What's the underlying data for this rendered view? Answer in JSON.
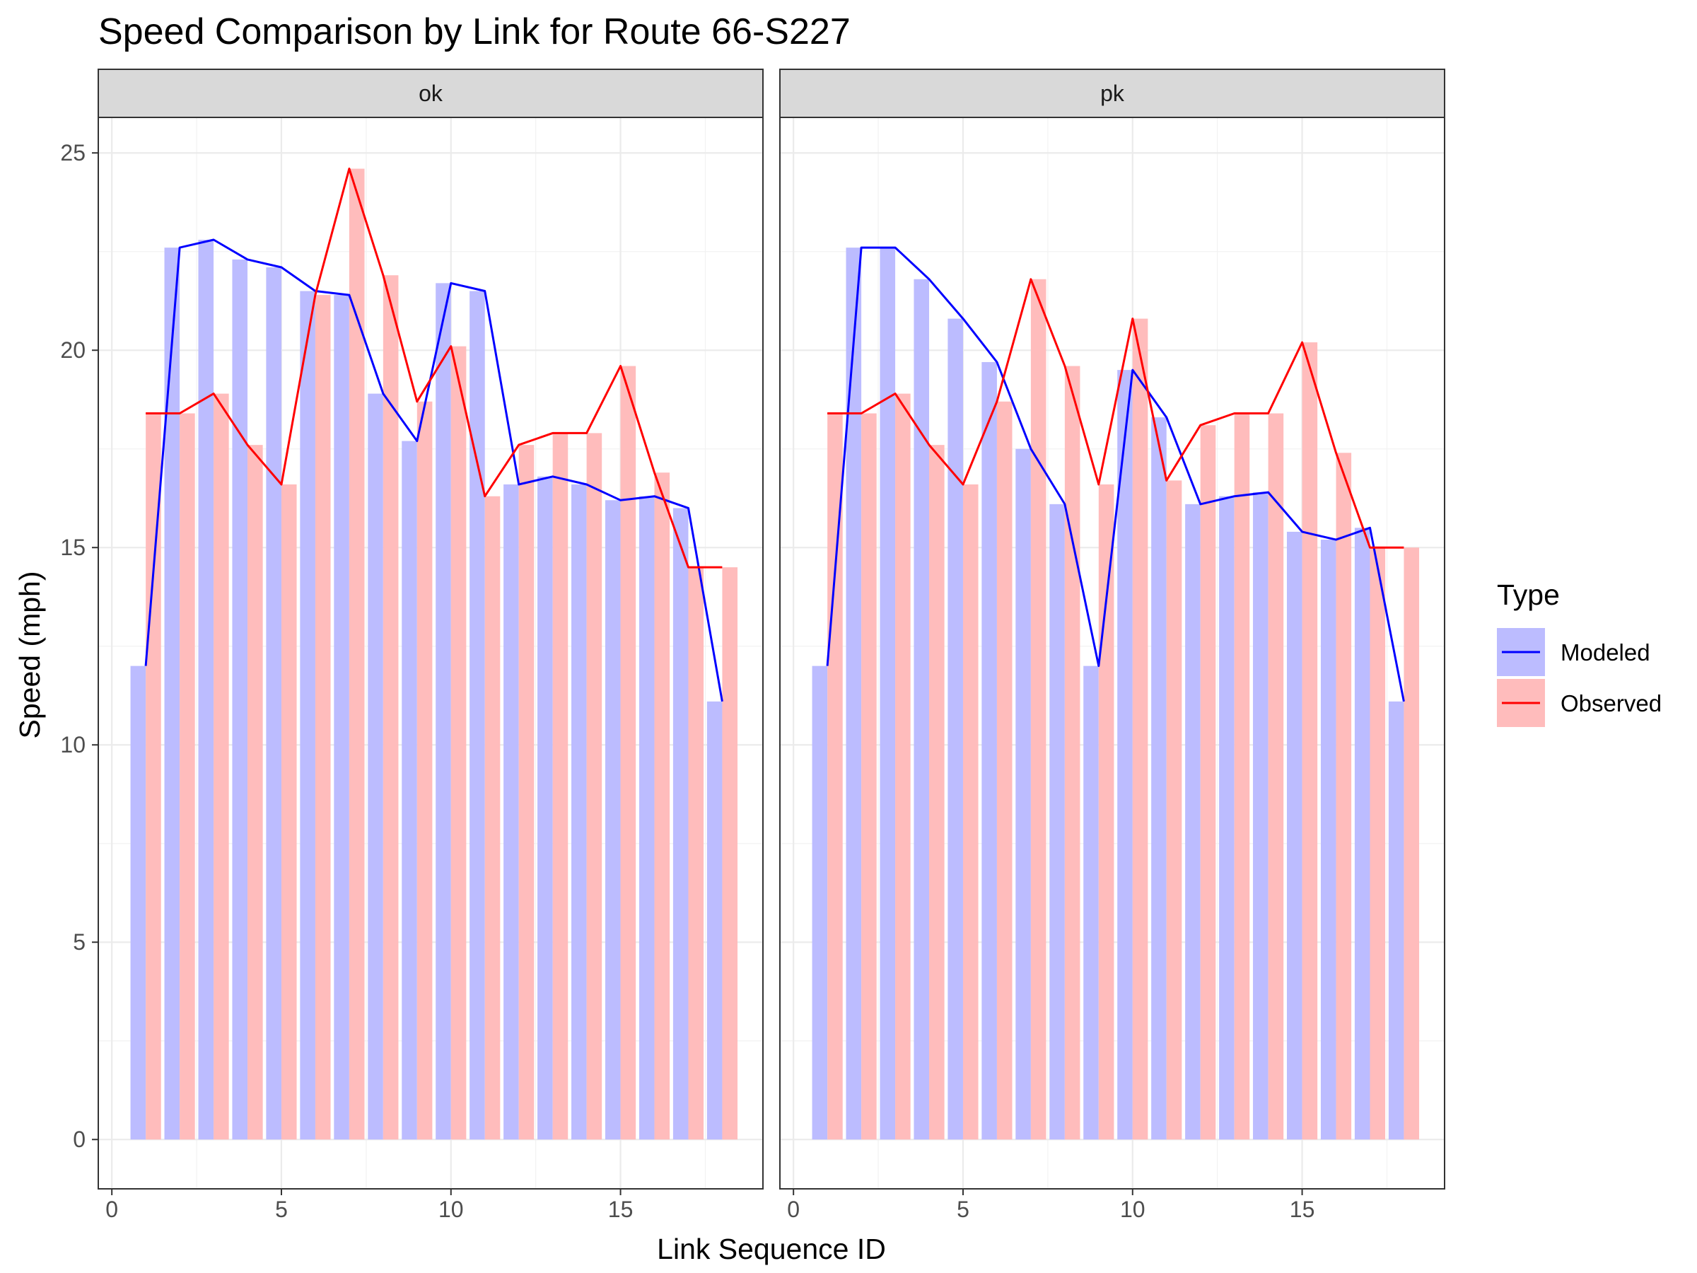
{
  "chart_data": {
    "type": "bar",
    "title": "Speed Comparison by Link for Route 66-S227",
    "xlabel": "Link Sequence ID",
    "ylabel": "Speed (mph)",
    "xlim": [
      -0.4,
      19.2
    ],
    "ylim": [
      -1.25,
      25.9
    ],
    "x_ticks": [
      0,
      5,
      10,
      15
    ],
    "y_ticks": [
      0,
      5,
      10,
      15,
      20,
      25
    ],
    "grid": true,
    "legend": {
      "title": "Type",
      "position": "right",
      "entries": [
        {
          "name": "Modeled",
          "line_color": "#0000ff",
          "fill_color": "#bcbcff"
        },
        {
          "name": "Observed",
          "line_color": "#ff0000",
          "fill_color": "#ffbcbc"
        }
      ]
    },
    "facets": [
      {
        "name": "ok",
        "x": [
          1,
          2,
          3,
          4,
          5,
          6,
          7,
          8,
          9,
          10,
          11,
          12,
          13,
          14,
          15,
          16,
          17,
          18
        ],
        "series": [
          {
            "name": "Modeled",
            "values": [
              12.0,
              22.6,
              22.8,
              22.3,
              22.1,
              21.5,
              21.4,
              18.9,
              17.7,
              21.7,
              21.5,
              16.6,
              16.8,
              16.6,
              16.2,
              16.3,
              16.0,
              11.1
            ]
          },
          {
            "name": "Observed",
            "values": [
              18.4,
              18.4,
              18.9,
              17.6,
              16.6,
              21.4,
              24.6,
              21.9,
              18.7,
              20.1,
              16.3,
              17.6,
              17.9,
              17.9,
              19.6,
              16.9,
              14.5,
              14.5
            ]
          }
        ]
      },
      {
        "name": "pk",
        "x": [
          1,
          2,
          3,
          4,
          5,
          6,
          7,
          8,
          9,
          10,
          11,
          12,
          13,
          14,
          15,
          16,
          17,
          18
        ],
        "series": [
          {
            "name": "Modeled",
            "values": [
              12.0,
              22.6,
              22.6,
              21.8,
              20.8,
              19.7,
              17.5,
              16.1,
              12.0,
              19.5,
              18.3,
              16.1,
              16.3,
              16.4,
              15.4,
              15.2,
              15.5,
              11.1
            ]
          },
          {
            "name": "Observed",
            "values": [
              18.4,
              18.4,
              18.9,
              17.6,
              16.6,
              18.7,
              21.8,
              19.6,
              16.6,
              20.8,
              16.7,
              18.1,
              18.4,
              18.4,
              20.2,
              17.4,
              15.0,
              15.0
            ]
          }
        ]
      }
    ]
  }
}
